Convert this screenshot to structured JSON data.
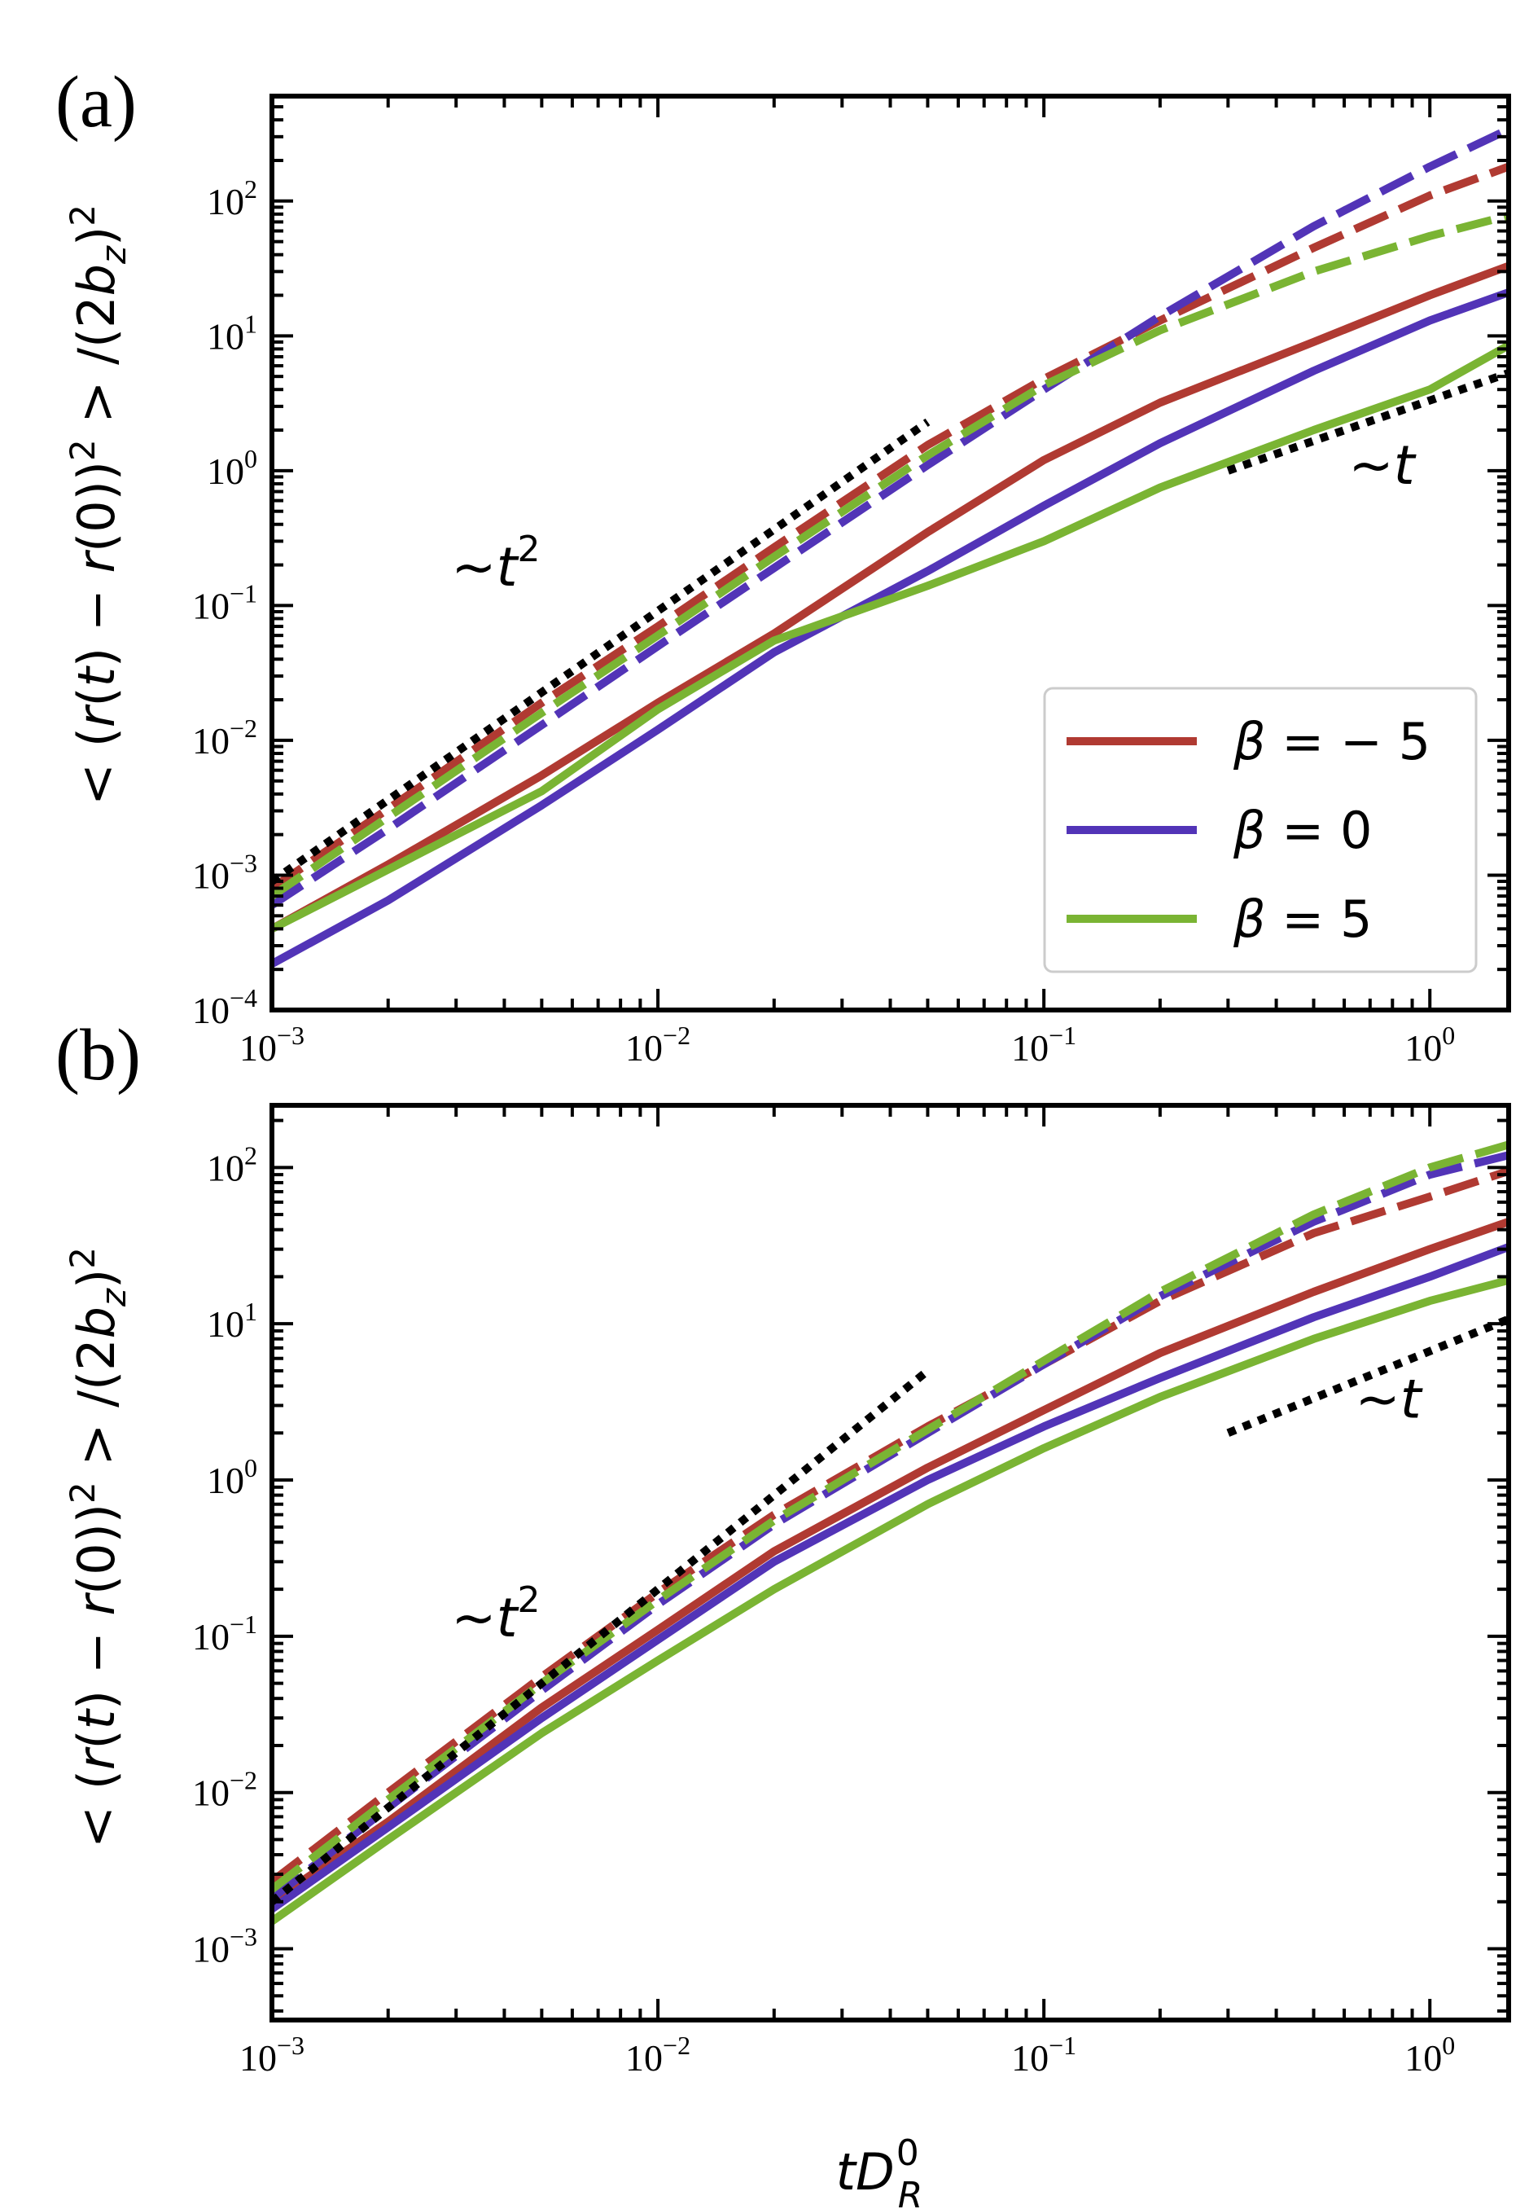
{
  "figure": {
    "xlabel": "tD",
    "xlabel_sup": "0",
    "xlabel_sub": "R",
    "ylabel": "< (r(t) − r(0))² > /(2b_z)²",
    "ylabel_parts": {
      "pre": "< (",
      "r1": "r",
      "p1": "(",
      "t": "t",
      "p2": ") − ",
      "r2": "r",
      "p3": "(0))",
      "sq1": "2",
      "mid": " > /(2",
      "b": "b",
      "z": "z",
      "p4": ")",
      "sq2": "2"
    },
    "legend": [
      {
        "label_prefix": "β = ",
        "label_value": "− 5",
        "color": "#b03a32"
      },
      {
        "label_prefix": "β = ",
        "label_value": "0",
        "color": "#5234b7"
      },
      {
        "label_prefix": "β = ",
        "label_value": "5",
        "color": "#7ab433"
      }
    ]
  },
  "chart_data": [
    {
      "panel": "(a)",
      "type": "line",
      "xscale": "log",
      "yscale": "log",
      "xlim": [
        0.001,
        1.6
      ],
      "ylim": [
        0.0001,
        600
      ],
      "x_ticks": [
        {
          "base": "10",
          "exp": "−3",
          "value": 0.001
        },
        {
          "base": "10",
          "exp": "−2",
          "value": 0.01
        },
        {
          "base": "10",
          "exp": "−1",
          "value": 0.1
        },
        {
          "base": "10",
          "exp": "0",
          "value": 1
        }
      ],
      "y_ticks": [
        {
          "base": "10",
          "exp": "−4",
          "value": 0.0001
        },
        {
          "base": "10",
          "exp": "−3",
          "value": 0.001
        },
        {
          "base": "10",
          "exp": "−2",
          "value": 0.01
        },
        {
          "base": "10",
          "exp": "−1",
          "value": 0.1
        },
        {
          "base": "10",
          "exp": "0",
          "value": 1
        },
        {
          "base": "10",
          "exp": "1",
          "value": 10
        },
        {
          "base": "10",
          "exp": "2",
          "value": 100
        }
      ],
      "annotations": [
        {
          "text": "~t",
          "sup": "2",
          "x": 0.0038,
          "y": 0.14
        },
        {
          "text": "~t",
          "sup": "",
          "x": 0.75,
          "y": 0.8
        }
      ],
      "guides": [
        {
          "name": "t2-guide",
          "x": [
            0.001,
            0.05
          ],
          "y": [
            0.0009,
            2.3
          ]
        },
        {
          "name": "t1-guide",
          "x": [
            0.3,
            1.6
          ],
          "y": [
            1.0,
            5.3
          ]
        }
      ],
      "series": [
        {
          "name": "β = −5 (solid)",
          "color": "#b03a32",
          "dash": false,
          "x": [
            0.001,
            0.002,
            0.005,
            0.01,
            0.02,
            0.05,
            0.1,
            0.2,
            0.5,
            1.0,
            1.6
          ],
          "y": [
            0.0004,
            0.0012,
            0.0055,
            0.019,
            0.062,
            0.35,
            1.2,
            3.2,
            9,
            20,
            33
          ]
        },
        {
          "name": "β = 0 (solid)",
          "color": "#5234b7",
          "dash": false,
          "x": [
            0.001,
            0.002,
            0.005,
            0.01,
            0.02,
            0.05,
            0.1,
            0.2,
            0.5,
            1.0,
            1.6
          ],
          "y": [
            0.00022,
            0.00065,
            0.0033,
            0.012,
            0.045,
            0.18,
            0.55,
            1.6,
            5.5,
            13,
            21
          ]
        },
        {
          "name": "β = 5 (solid)",
          "color": "#7ab433",
          "dash": false,
          "x": [
            0.001,
            0.002,
            0.005,
            0.01,
            0.02,
            0.05,
            0.1,
            0.2,
            0.5,
            1.0,
            1.6
          ],
          "y": [
            0.0004,
            0.0011,
            0.0042,
            0.017,
            0.055,
            0.14,
            0.3,
            0.75,
            2.0,
            4.0,
            8.5
          ]
        },
        {
          "name": "β = −5 (dashed)",
          "color": "#b03a32",
          "dash": true,
          "x": [
            0.001,
            0.002,
            0.005,
            0.01,
            0.02,
            0.05,
            0.1,
            0.2,
            0.5,
            1.0,
            1.6
          ],
          "y": [
            0.0008,
            0.0031,
            0.019,
            0.07,
            0.27,
            1.55,
            4.8,
            13,
            45,
            110,
            180
          ]
        },
        {
          "name": "β = 0 (dashed)",
          "color": "#5234b7",
          "dash": true,
          "x": [
            0.001,
            0.002,
            0.005,
            0.01,
            0.02,
            0.05,
            0.1,
            0.2,
            0.5,
            1.0,
            1.6
          ],
          "y": [
            0.0006,
            0.0022,
            0.013,
            0.05,
            0.19,
            1.1,
            4.0,
            14,
            65,
            180,
            340
          ]
        },
        {
          "name": "β = 5 (dashed)",
          "color": "#7ab433",
          "dash": true,
          "x": [
            0.001,
            0.002,
            0.005,
            0.01,
            0.02,
            0.05,
            0.1,
            0.2,
            0.5,
            1.0,
            1.6
          ],
          "y": [
            0.0007,
            0.0027,
            0.016,
            0.06,
            0.23,
            1.3,
            4.3,
            11,
            30,
            55,
            78
          ]
        }
      ]
    },
    {
      "panel": "(b)",
      "type": "line",
      "xscale": "log",
      "yscale": "log",
      "xlim": [
        0.001,
        1.6
      ],
      "ylim": [
        0.00035,
        250
      ],
      "x_ticks": [
        {
          "base": "10",
          "exp": "−3",
          "value": 0.001
        },
        {
          "base": "10",
          "exp": "−2",
          "value": 0.01
        },
        {
          "base": "10",
          "exp": "−1",
          "value": 0.1
        },
        {
          "base": "10",
          "exp": "0",
          "value": 1
        }
      ],
      "y_ticks": [
        {
          "base": "10",
          "exp": "−3",
          "value": 0.001
        },
        {
          "base": "10",
          "exp": "−2",
          "value": 0.01
        },
        {
          "base": "10",
          "exp": "−1",
          "value": 0.1
        },
        {
          "base": "10",
          "exp": "0",
          "value": 1
        },
        {
          "base": "10",
          "exp": "1",
          "value": 10
        },
        {
          "base": "10",
          "exp": "2",
          "value": 100
        }
      ],
      "annotations": [
        {
          "text": "~t",
          "sup": "2",
          "x": 0.0038,
          "y": 0.1
        },
        {
          "text": "~t",
          "sup": "",
          "x": 0.78,
          "y": 2.5
        }
      ],
      "guides": [
        {
          "name": "t2-guide",
          "x": [
            0.001,
            0.05
          ],
          "y": [
            0.002,
            5.0
          ]
        },
        {
          "name": "t1-guide",
          "x": [
            0.3,
            1.6
          ],
          "y": [
            2.0,
            10.7
          ]
        }
      ],
      "series": [
        {
          "name": "β = −5 (solid)",
          "color": "#b03a32",
          "dash": false,
          "x": [
            0.001,
            0.002,
            0.005,
            0.01,
            0.02,
            0.05,
            0.1,
            0.2,
            0.5,
            1.0,
            1.6
          ],
          "y": [
            0.002,
            0.0065,
            0.035,
            0.11,
            0.35,
            1.2,
            2.8,
            6.5,
            16,
            30,
            45
          ]
        },
        {
          "name": "β = 0 (solid)",
          "color": "#5234b7",
          "dash": false,
          "x": [
            0.001,
            0.002,
            0.005,
            0.01,
            0.02,
            0.05,
            0.1,
            0.2,
            0.5,
            1.0,
            1.6
          ],
          "y": [
            0.0018,
            0.006,
            0.03,
            0.095,
            0.3,
            1.0,
            2.2,
            4.5,
            11,
            20,
            31
          ]
        },
        {
          "name": "β = 5 (solid)",
          "color": "#7ab433",
          "dash": false,
          "x": [
            0.001,
            0.002,
            0.005,
            0.01,
            0.02,
            0.05,
            0.1,
            0.2,
            0.5,
            1.0,
            1.6
          ],
          "y": [
            0.0015,
            0.005,
            0.024,
            0.07,
            0.2,
            0.7,
            1.6,
            3.4,
            8,
            14,
            19
          ]
        },
        {
          "name": "β = −5 (dashed)",
          "color": "#b03a32",
          "dash": true,
          "x": [
            0.001,
            0.002,
            0.005,
            0.01,
            0.02,
            0.05,
            0.1,
            0.2,
            0.5,
            1.0,
            1.6
          ],
          "y": [
            0.0027,
            0.01,
            0.055,
            0.19,
            0.6,
            2.2,
            5.5,
            14,
            38,
            65,
            95
          ]
        },
        {
          "name": "β = 0 (dashed)",
          "color": "#5234b7",
          "dash": true,
          "x": [
            0.001,
            0.002,
            0.005,
            0.01,
            0.02,
            0.05,
            0.1,
            0.2,
            0.5,
            1.0,
            1.6
          ],
          "y": [
            0.0021,
            0.008,
            0.045,
            0.16,
            0.52,
            2.0,
            5.5,
            15,
            45,
            90,
            120
          ]
        },
        {
          "name": "β = 5 (dashed)",
          "color": "#7ab433",
          "dash": true,
          "x": [
            0.001,
            0.002,
            0.005,
            0.01,
            0.02,
            0.05,
            0.1,
            0.2,
            0.5,
            1.0,
            1.6
          ],
          "y": [
            0.0024,
            0.009,
            0.05,
            0.17,
            0.55,
            2.1,
            5.8,
            16,
            50,
            100,
            140
          ]
        }
      ]
    }
  ]
}
